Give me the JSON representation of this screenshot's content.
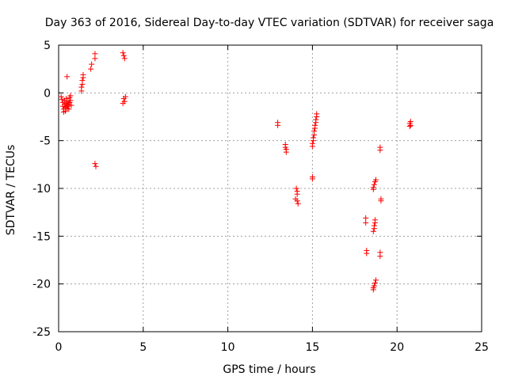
{
  "chart_data": {
    "type": "scatter",
    "title": "Day 363 of 2016, Sidereal Day-to-day VTEC variation (SDTVAR) for receiver saga",
    "xlabel": "GPS time / hours",
    "ylabel": "SDTVAR / TECUs",
    "xlim": [
      0,
      25
    ],
    "ylim": [
      -25,
      5
    ],
    "xticks": [
      0,
      5,
      10,
      15,
      20,
      25
    ],
    "yticks": [
      -25,
      -20,
      -15,
      -10,
      -5,
      0,
      5
    ],
    "grid": true,
    "marker": "plus",
    "color": "#ff0000",
    "series": [
      {
        "name": "SDTVAR",
        "points": [
          [
            0.15,
            -0.4
          ],
          [
            0.2,
            -0.7
          ],
          [
            0.25,
            -1.0
          ],
          [
            0.25,
            -1.4
          ],
          [
            0.3,
            -1.7
          ],
          [
            0.3,
            -2.0
          ],
          [
            0.35,
            -0.8
          ],
          [
            0.35,
            -1.2
          ],
          [
            0.4,
            -1.5
          ],
          [
            0.4,
            -1.9
          ],
          [
            0.45,
            -0.6
          ],
          [
            0.45,
            -1.1
          ],
          [
            0.5,
            -1.3
          ],
          [
            0.5,
            -1.6
          ],
          [
            0.55,
            -0.9
          ],
          [
            0.55,
            -1.4
          ],
          [
            0.6,
            -1.2
          ],
          [
            0.6,
            -1.7
          ],
          [
            0.65,
            -0.5
          ],
          [
            0.65,
            -1.0
          ],
          [
            0.7,
            -0.3
          ],
          [
            0.7,
            -0.8
          ],
          [
            0.75,
            -1.3
          ],
          [
            0.5,
            1.7
          ],
          [
            1.35,
            0.2
          ],
          [
            1.35,
            0.6
          ],
          [
            1.4,
            0.9
          ],
          [
            1.4,
            1.3
          ],
          [
            1.45,
            1.6
          ],
          [
            1.45,
            1.9
          ],
          [
            1.9,
            2.5
          ],
          [
            1.95,
            3.0
          ],
          [
            2.15,
            3.6
          ],
          [
            2.15,
            4.1
          ],
          [
            2.15,
            -7.4
          ],
          [
            2.2,
            -7.7
          ],
          [
            3.8,
            4.2
          ],
          [
            3.85,
            3.9
          ],
          [
            3.9,
            3.6
          ],
          [
            3.85,
            -0.6
          ],
          [
            3.9,
            -0.9
          ],
          [
            3.8,
            -1.1
          ],
          [
            3.95,
            -0.4
          ],
          [
            12.95,
            -3.1
          ],
          [
            12.95,
            -3.4
          ],
          [
            13.4,
            -5.4
          ],
          [
            13.4,
            -5.7
          ],
          [
            13.45,
            -5.9
          ],
          [
            13.45,
            -6.2
          ],
          [
            14.05,
            -10.0
          ],
          [
            14.1,
            -10.3
          ],
          [
            14.1,
            -10.6
          ],
          [
            14.0,
            -11.1
          ],
          [
            14.1,
            -11.3
          ],
          [
            14.15,
            -11.6
          ],
          [
            15.0,
            -5.3
          ],
          [
            15.0,
            -5.6
          ],
          [
            15.05,
            -5.0
          ],
          [
            15.05,
            -4.7
          ],
          [
            15.1,
            -4.4
          ],
          [
            15.1,
            -4.0
          ],
          [
            15.15,
            -3.7
          ],
          [
            15.15,
            -3.4
          ],
          [
            15.2,
            -3.1
          ],
          [
            15.2,
            -2.8
          ],
          [
            15.25,
            -2.5
          ],
          [
            15.25,
            -2.2
          ],
          [
            15.0,
            -8.8
          ],
          [
            15.0,
            -9.0
          ],
          [
            18.15,
            -13.1
          ],
          [
            18.15,
            -13.6
          ],
          [
            18.2,
            -16.5
          ],
          [
            18.2,
            -16.8
          ],
          [
            18.6,
            -9.9
          ],
          [
            18.65,
            -9.6
          ],
          [
            18.7,
            -9.3
          ],
          [
            18.75,
            -9.1
          ],
          [
            18.6,
            -10.1
          ],
          [
            18.6,
            -14.5
          ],
          [
            18.65,
            -14.2
          ],
          [
            18.65,
            -13.9
          ],
          [
            18.7,
            -13.6
          ],
          [
            18.7,
            -13.3
          ],
          [
            18.6,
            -20.4
          ],
          [
            18.65,
            -20.2
          ],
          [
            18.7,
            -19.9
          ],
          [
            18.75,
            -19.6
          ],
          [
            18.6,
            -20.6
          ],
          [
            19.0,
            -5.7
          ],
          [
            19.0,
            -6.0
          ],
          [
            19.05,
            -11.1
          ],
          [
            19.05,
            -11.3
          ],
          [
            19.0,
            -16.7
          ],
          [
            19.0,
            -17.1
          ],
          [
            20.75,
            -3.2
          ],
          [
            20.75,
            -3.5
          ],
          [
            20.8,
            -3.0
          ],
          [
            20.8,
            -3.4
          ]
        ]
      }
    ]
  }
}
